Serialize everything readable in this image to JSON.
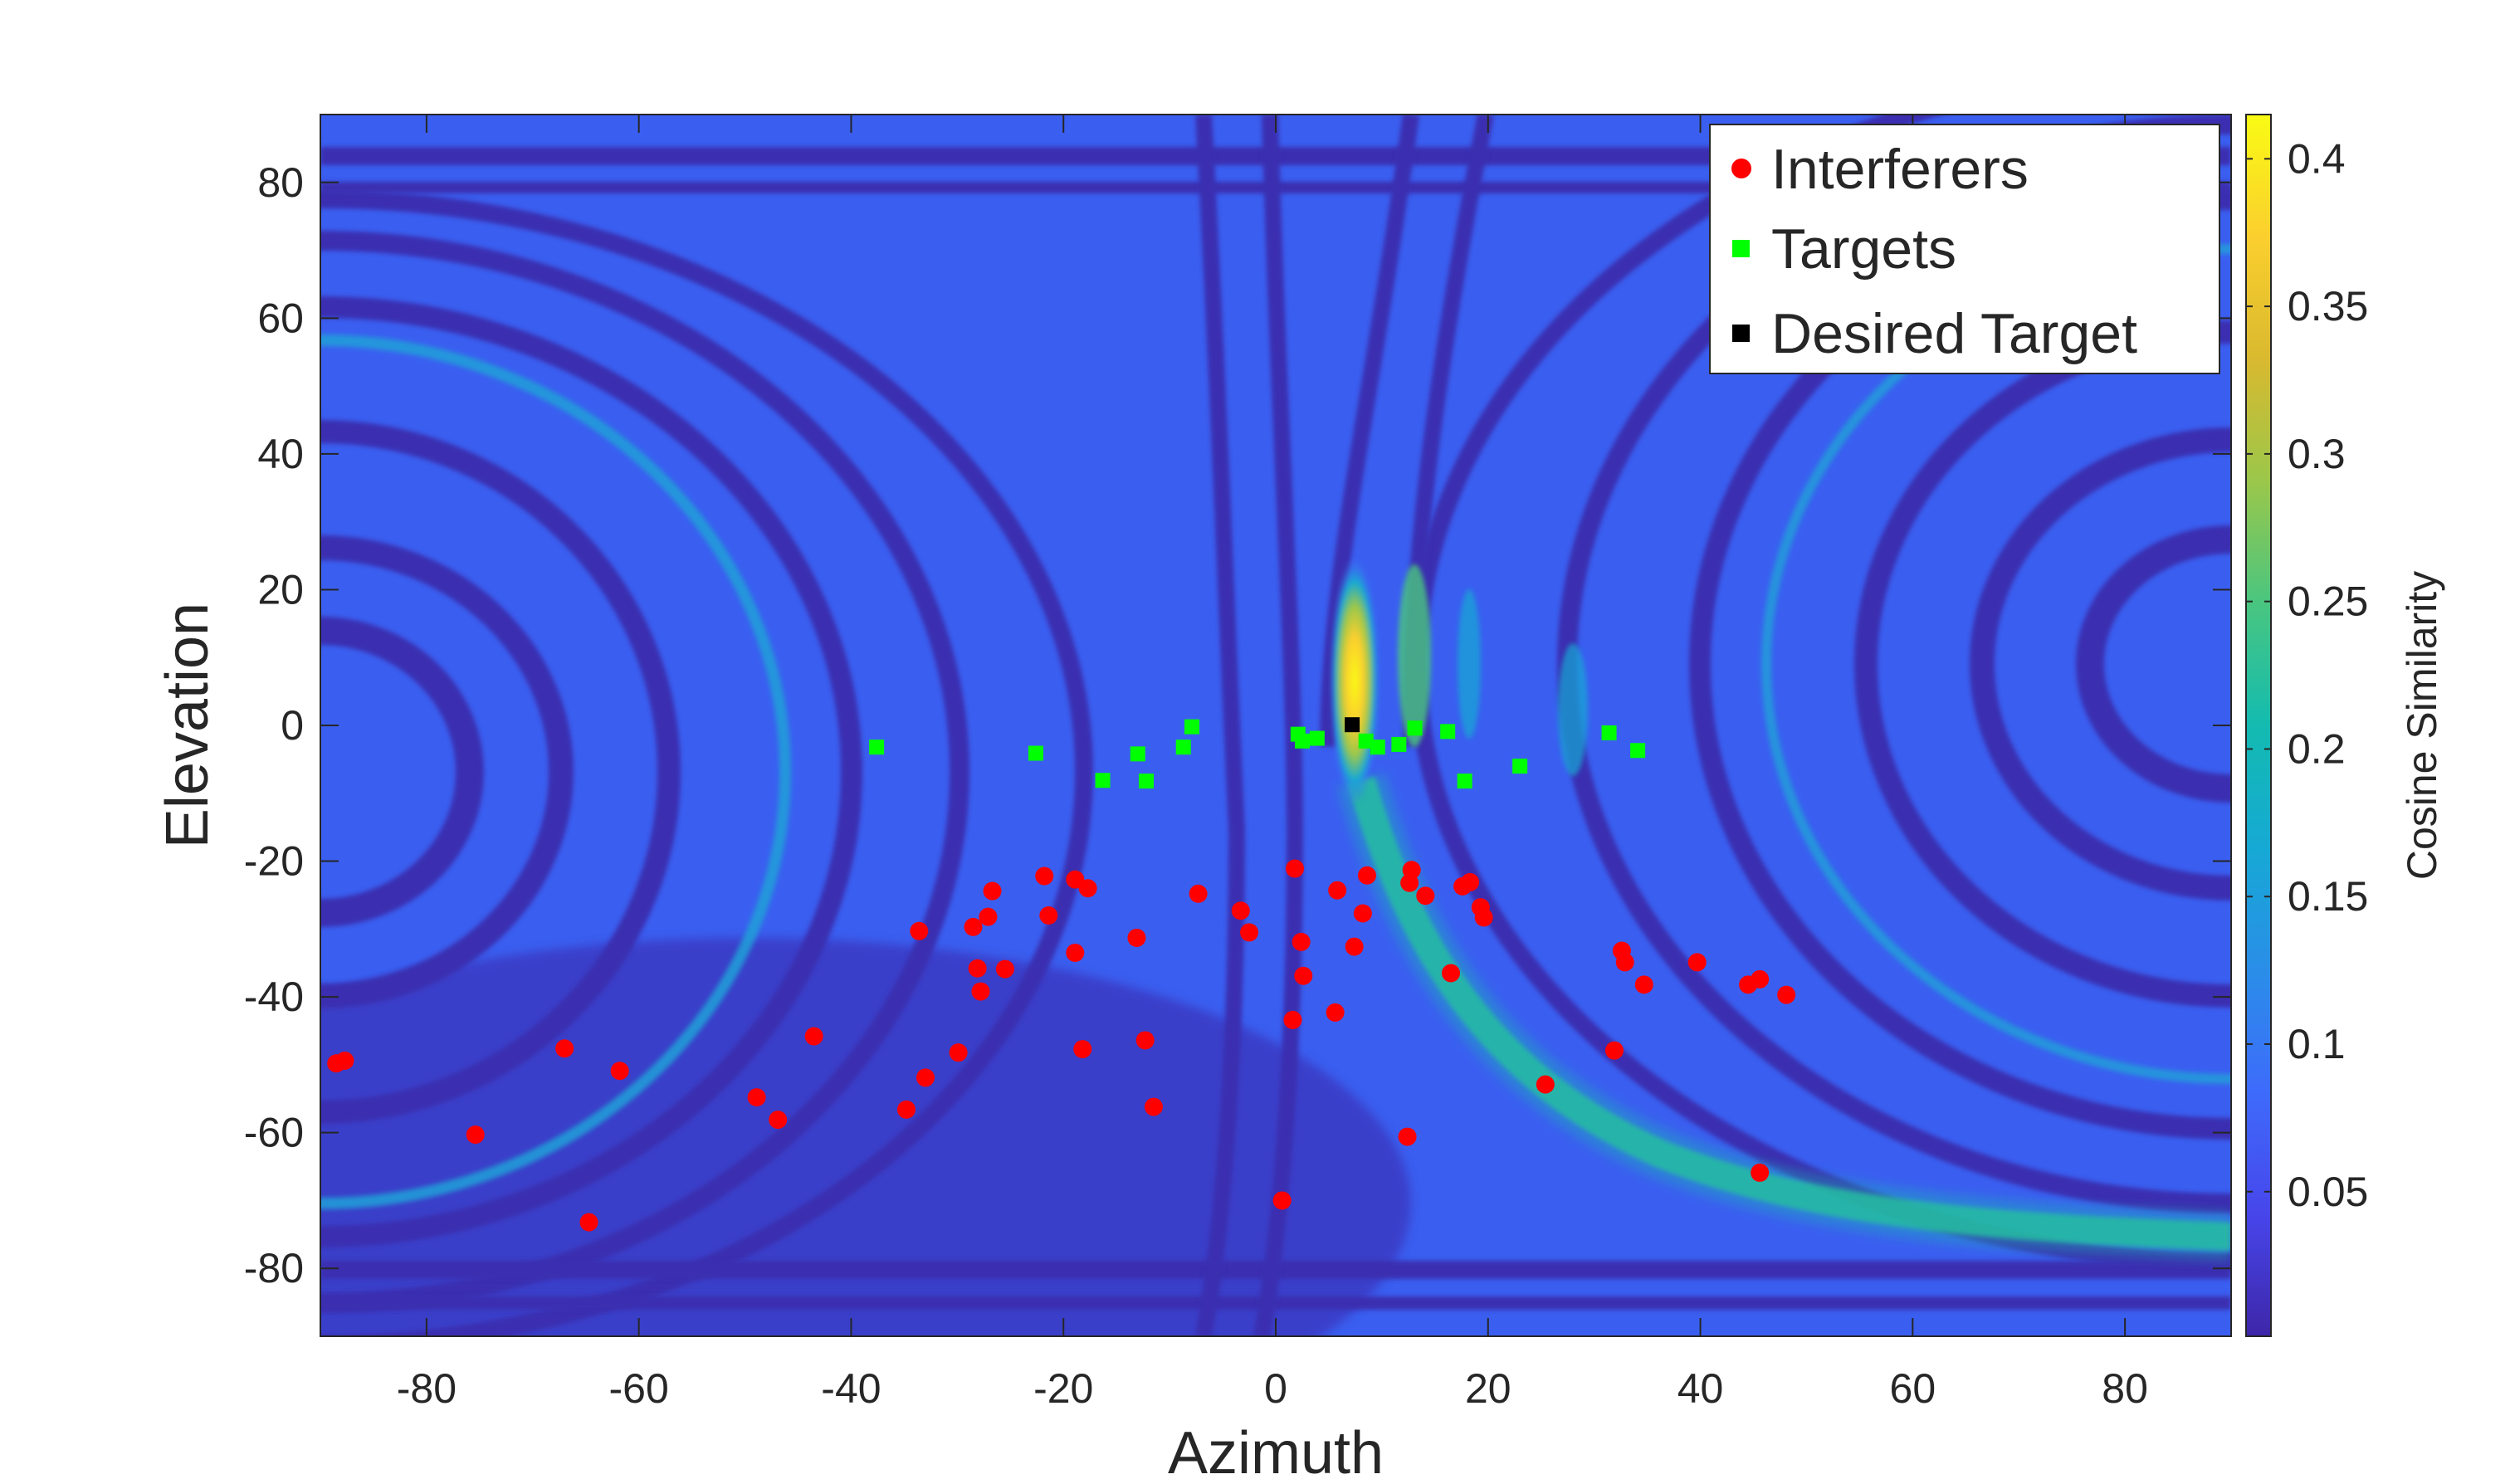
{
  "chart_data": {
    "type": "scatter",
    "title": "",
    "xlabel": "Azimuth",
    "ylabel": "Elevation",
    "xlim": [
      -90,
      90
    ],
    "ylim": [
      -90,
      90
    ],
    "xticks": [
      -80,
      -60,
      -40,
      -20,
      0,
      20,
      40,
      60,
      80
    ],
    "yticks": [
      -80,
      -60,
      -40,
      -20,
      0,
      20,
      40,
      60,
      80
    ],
    "x_tick_labels": [
      "-80",
      "-60",
      "-40",
      "-20",
      "0",
      "20",
      "40",
      "60",
      "80"
    ],
    "y_tick_labels": [
      "-80",
      "-60",
      "-40",
      "-20",
      "0",
      "20",
      "40",
      "60",
      "80"
    ],
    "background": "heatmap of cosine similarity over azimuth/elevation",
    "colorbar": {
      "label": "Cosine Similarity",
      "range": [
        0.001,
        0.415
      ],
      "ticks": [
        0.05,
        0.1,
        0.15,
        0.2,
        0.25,
        0.3,
        0.35,
        0.4
      ],
      "tick_labels": [
        "0.05",
        "0.1",
        "0.15",
        "0.2",
        "0.25",
        "0.3",
        "0.35",
        "0.4"
      ],
      "colormap": "parula",
      "stops": [
        "#3e26a8",
        "#4746eb",
        "#3e6bfb",
        "#2a8ee8",
        "#16a9d4",
        "#13bbb0",
        "#49c680",
        "#9bc74a",
        "#d9b92f",
        "#fbcf2e",
        "#f9fb14"
      ]
    },
    "legend": {
      "placement": "top-right",
      "entries": [
        "Interferers",
        "Targets",
        "Desired Target"
      ]
    },
    "series": [
      {
        "name": "Interferers",
        "marker": "circle",
        "color": "#ff0000",
        "points": [
          [
            -88.5,
            -49.8
          ],
          [
            -87.7,
            -49.4
          ],
          [
            -75.4,
            -60.3
          ],
          [
            -67.0,
            -47.6
          ],
          [
            -64.7,
            -73.2
          ],
          [
            -61.8,
            -50.9
          ],
          [
            -48.9,
            -54.8
          ],
          [
            -46.9,
            -58.1
          ],
          [
            -43.5,
            -45.8
          ],
          [
            -34.8,
            -56.6
          ],
          [
            -33.6,
            -30.3
          ],
          [
            -33.0,
            -51.9
          ],
          [
            -29.9,
            -48.2
          ],
          [
            -28.5,
            -29.7
          ],
          [
            -28.1,
            -35.8
          ],
          [
            -27.8,
            -39.2
          ],
          [
            -27.1,
            -28.2
          ],
          [
            -26.7,
            -24.4
          ],
          [
            -25.5,
            -35.9
          ],
          [
            -21.8,
            -22.2
          ],
          [
            -21.4,
            -28.0
          ],
          [
            -18.9,
            -22.7
          ],
          [
            -18.9,
            -33.5
          ],
          [
            -18.2,
            -47.7
          ],
          [
            -17.7,
            -24.0
          ],
          [
            -13.1,
            -31.3
          ],
          [
            -12.3,
            -46.4
          ],
          [
            -11.5,
            -56.2
          ],
          [
            -7.3,
            -24.8
          ],
          [
            -3.3,
            -27.3
          ],
          [
            -2.5,
            -30.5
          ],
          [
            0.6,
            -70.0
          ],
          [
            1.6,
            -43.4
          ],
          [
            1.8,
            -21.1
          ],
          [
            2.4,
            -31.9
          ],
          [
            2.6,
            -36.9
          ],
          [
            5.8,
            -24.3
          ],
          [
            5.6,
            -42.3
          ],
          [
            7.4,
            -32.6
          ],
          [
            8.2,
            -27.7
          ],
          [
            8.6,
            -22.1
          ],
          [
            12.4,
            -60.6
          ],
          [
            12.6,
            -23.2
          ],
          [
            12.8,
            -21.3
          ],
          [
            14.1,
            -25.1
          ],
          [
            16.5,
            -36.5
          ],
          [
            17.6,
            -23.7
          ],
          [
            18.3,
            -23.1
          ],
          [
            19.3,
            -26.8
          ],
          [
            19.6,
            -28.3
          ],
          [
            25.4,
            -52.9
          ],
          [
            31.9,
            -47.9
          ],
          [
            32.6,
            -33.2
          ],
          [
            32.9,
            -34.9
          ],
          [
            34.7,
            -38.2
          ],
          [
            39.7,
            -34.9
          ],
          [
            44.5,
            -38.2
          ],
          [
            45.6,
            -37.4
          ],
          [
            45.6,
            -65.9
          ],
          [
            48.1,
            -39.7
          ]
        ]
      },
      {
        "name": "Targets",
        "marker": "square",
        "color": "#00ff00",
        "points": [
          [
            -37.6,
            -3.2
          ],
          [
            -22.6,
            -4.1
          ],
          [
            -16.3,
            -8.1
          ],
          [
            -13.0,
            -4.2
          ],
          [
            -12.2,
            -8.2
          ],
          [
            -8.7,
            -3.2
          ],
          [
            -7.9,
            -0.2
          ],
          [
            2.1,
            -1.3
          ],
          [
            2.5,
            -2.3
          ],
          [
            3.9,
            -1.9
          ],
          [
            8.5,
            -2.3
          ],
          [
            9.6,
            -3.2
          ],
          [
            11.6,
            -2.8
          ],
          [
            13.1,
            -0.4
          ],
          [
            16.2,
            -0.9
          ],
          [
            17.8,
            -8.2
          ],
          [
            23.0,
            -6.0
          ],
          [
            31.4,
            -1.1
          ],
          [
            34.1,
            -3.7
          ]
        ]
      },
      {
        "name": "Desired Target",
        "marker": "square",
        "color": "#000000",
        "points": [
          [
            7.2,
            0.1
          ]
        ]
      }
    ]
  }
}
